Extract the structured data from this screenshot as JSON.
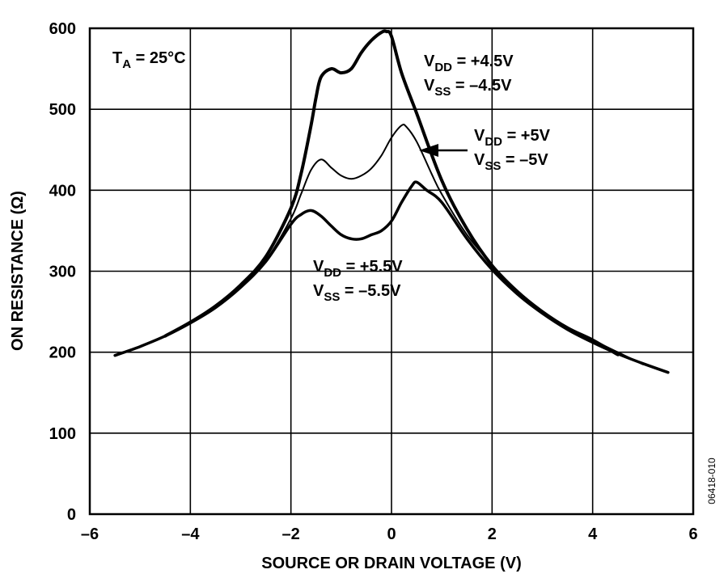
{
  "chart_data": {
    "type": "line",
    "title": "",
    "xlabel": "SOURCE OR DRAIN VOLTAGE (V)",
    "ylabel": "ON RESISTANCE (Ω)",
    "xlim": [
      -6,
      6
    ],
    "ylim": [
      0,
      600
    ],
    "x_ticks": [
      -6,
      -4,
      -2,
      0,
      2,
      4,
      6
    ],
    "x_tick_labels": [
      "–6",
      "–4",
      "–2",
      "0",
      "2",
      "4",
      "6"
    ],
    "y_ticks": [
      0,
      100,
      200,
      300,
      400,
      500,
      600
    ],
    "y_tick_labels": [
      "0",
      "100",
      "200",
      "300",
      "400",
      "500",
      "600"
    ],
    "grid": true,
    "figure_id": "06418-010",
    "condition": {
      "main": "T",
      "sub": "A",
      "rest": " = 25°C"
    },
    "series": [
      {
        "label_lines": [
          {
            "main": "V",
            "sub": "DD",
            "rest": " = +4.5V"
          },
          {
            "main": "V",
            "sub": "SS",
            "rest": " = –4.5V"
          }
        ],
        "stroke_width": 4,
        "x": [
          -4.5,
          -4.0,
          -3.5,
          -3.0,
          -2.5,
          -2.0,
          -1.8,
          -1.6,
          -1.5,
          -1.4,
          -1.2,
          -1.0,
          -0.8,
          -0.6,
          -0.4,
          -0.2,
          -0.1,
          0.0,
          0.2,
          0.5,
          1.0,
          1.5,
          2.0,
          2.5,
          3.0,
          3.5,
          4.0,
          4.5
        ],
        "y": [
          220,
          237,
          257,
          283,
          318,
          378,
          420,
          480,
          515,
          540,
          550,
          545,
          550,
          570,
          585,
          595,
          596,
          590,
          545,
          495,
          412,
          352,
          307,
          275,
          250,
          230,
          215,
          197
        ]
      },
      {
        "label_lines": [
          {
            "main": "V",
            "sub": "DD",
            "rest": " = +5V"
          },
          {
            "main": "V",
            "sub": "SS",
            "rest": " = –5V"
          }
        ],
        "stroke_width": 2,
        "x": [
          -5.0,
          -4.5,
          -4.0,
          -3.5,
          -3.0,
          -2.5,
          -2.0,
          -1.8,
          -1.6,
          -1.4,
          -1.2,
          -1.0,
          -0.8,
          -0.6,
          -0.4,
          -0.2,
          0.0,
          0.2,
          0.3,
          0.5,
          0.8,
          1.0,
          1.5,
          2.0,
          2.5,
          3.0,
          3.5,
          4.0,
          4.5,
          5.0
        ],
        "y": [
          207,
          220,
          236,
          255,
          280,
          313,
          365,
          395,
          425,
          438,
          428,
          418,
          414,
          418,
          427,
          443,
          465,
          480,
          478,
          460,
          420,
          395,
          345,
          308,
          275,
          250,
          230,
          215,
          200,
          185
        ]
      },
      {
        "label_lines": [
          {
            "main": "V",
            "sub": "DD",
            "rest": " = +5.5V"
          },
          {
            "main": "V",
            "sub": "SS",
            "rest": " = –5.5V"
          }
        ],
        "stroke_width": 3.5,
        "x": [
          -5.5,
          -5.0,
          -4.5,
          -4.0,
          -3.5,
          -3.0,
          -2.5,
          -2.0,
          -1.8,
          -1.6,
          -1.4,
          -1.2,
          -1.0,
          -0.8,
          -0.6,
          -0.4,
          -0.2,
          0.0,
          0.2,
          0.4,
          0.5,
          0.7,
          1.0,
          1.5,
          2.0,
          2.5,
          3.0,
          3.5,
          4.0,
          4.5,
          5.0,
          5.5
        ],
        "y": [
          196,
          207,
          220,
          236,
          255,
          280,
          312,
          358,
          370,
          375,
          368,
          356,
          345,
          340,
          340,
          345,
          350,
          362,
          385,
          405,
          410,
          400,
          385,
          340,
          302,
          272,
          248,
          228,
          212,
          198,
          186,
          175
        ]
      }
    ]
  }
}
